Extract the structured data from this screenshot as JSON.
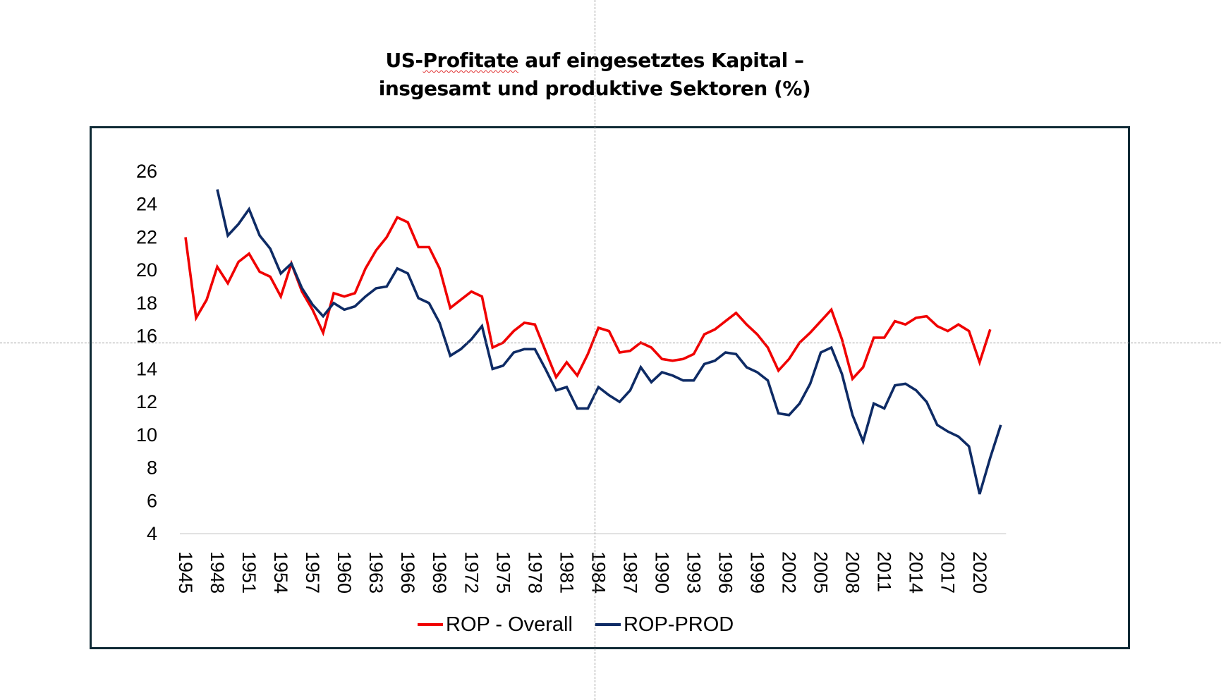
{
  "title_lines": [
    {
      "prefix": "US-",
      "squiggle": "Profitate",
      "rest": " auf eingesetztes Kapital –"
    },
    {
      "text": "insgesamt und produktive Sektoren (%)"
    }
  ],
  "chart_data": {
    "type": "line",
    "title": "US-Profitate auf eingesetztes Kapital – insgesamt und produktive Sektoren (%)",
    "xlabel": "",
    "ylabel": "",
    "ylim": [
      4,
      26
    ],
    "yticks": [
      "4",
      "6",
      "8",
      "10",
      "12",
      "14",
      "16",
      "18",
      "20",
      "22",
      "24",
      "26"
    ],
    "x": [
      1945,
      1946,
      1947,
      1948,
      1949,
      1950,
      1951,
      1952,
      1953,
      1954,
      1955,
      1956,
      1957,
      1958,
      1959,
      1960,
      1961,
      1962,
      1963,
      1964,
      1965,
      1966,
      1967,
      1968,
      1969,
      1970,
      1971,
      1972,
      1973,
      1974,
      1975,
      1976,
      1977,
      1978,
      1979,
      1980,
      1981,
      1982,
      1983,
      1984,
      1985,
      1986,
      1987,
      1988,
      1989,
      1990,
      1991,
      1992,
      1993,
      1994,
      1995,
      1996,
      1997,
      1998,
      1999,
      2000,
      2001,
      2002,
      2003,
      2004,
      2005,
      2006,
      2007,
      2008,
      2009,
      2010,
      2011,
      2012,
      2013,
      2014,
      2015,
      2016,
      2017,
      2018,
      2019,
      2020,
      2021,
      2022
    ],
    "xtick_labels": [
      "1945",
      "1948",
      "1951",
      "1954",
      "1957",
      "1960",
      "1963",
      "1966",
      "1969",
      "1972",
      "1975",
      "1978",
      "1981",
      "1984",
      "1987",
      "1990",
      "1993",
      "1996",
      "1999",
      "2002",
      "2005",
      "2008",
      "2011",
      "2014",
      "2017",
      "2020"
    ],
    "grid": false,
    "legend_position": "bottom",
    "series": [
      {
        "name": "ROP - Overall",
        "color": "#f00000",
        "values": [
          22.0,
          17.1,
          18.2,
          20.2,
          19.2,
          20.5,
          21.0,
          19.9,
          19.6,
          18.4,
          20.4,
          18.7,
          17.6,
          16.2,
          18.6,
          18.4,
          18.6,
          20.1,
          21.2,
          22.0,
          23.2,
          22.9,
          21.4,
          21.4,
          20.1,
          17.7,
          18.2,
          18.7,
          18.4,
          15.3,
          15.6,
          16.3,
          16.8,
          16.7,
          15.1,
          13.5,
          14.4,
          13.6,
          14.9,
          16.5,
          16.3,
          15.0,
          15.1,
          15.6,
          15.3,
          14.6,
          14.5,
          14.6,
          14.9,
          16.1,
          16.4,
          16.9,
          17.4,
          16.7,
          16.1,
          15.3,
          13.9,
          14.6,
          15.6,
          16.2,
          16.9,
          17.6,
          15.8,
          13.4,
          14.1,
          15.9,
          15.9,
          16.9,
          16.7,
          17.1,
          17.2,
          16.6,
          16.3,
          16.7,
          16.3,
          14.4,
          16.4,
          null
        ]
      },
      {
        "name": "ROP-PROD",
        "color": "#0e2b65",
        "values": [
          null,
          null,
          null,
          24.9,
          22.1,
          22.8,
          23.7,
          22.1,
          21.3,
          19.8,
          20.4,
          18.9,
          17.9,
          17.2,
          18.0,
          17.6,
          17.8,
          18.4,
          18.9,
          19.0,
          20.1,
          19.8,
          18.3,
          18.0,
          16.8,
          14.8,
          15.2,
          15.8,
          16.6,
          14.0,
          14.2,
          15.0,
          15.2,
          15.2,
          14.0,
          12.7,
          12.9,
          11.6,
          11.6,
          12.9,
          12.4,
          12.0,
          12.7,
          14.1,
          13.2,
          13.8,
          13.6,
          13.3,
          13.3,
          14.3,
          14.5,
          15.0,
          14.9,
          14.1,
          13.8,
          13.3,
          11.3,
          11.2,
          11.9,
          13.1,
          15.0,
          15.3,
          13.7,
          11.2,
          9.6,
          11.9,
          11.6,
          13.0,
          13.1,
          12.7,
          12.0,
          10.6,
          10.2,
          9.9,
          9.3,
          6.4,
          8.6,
          10.6
        ]
      }
    ]
  }
}
